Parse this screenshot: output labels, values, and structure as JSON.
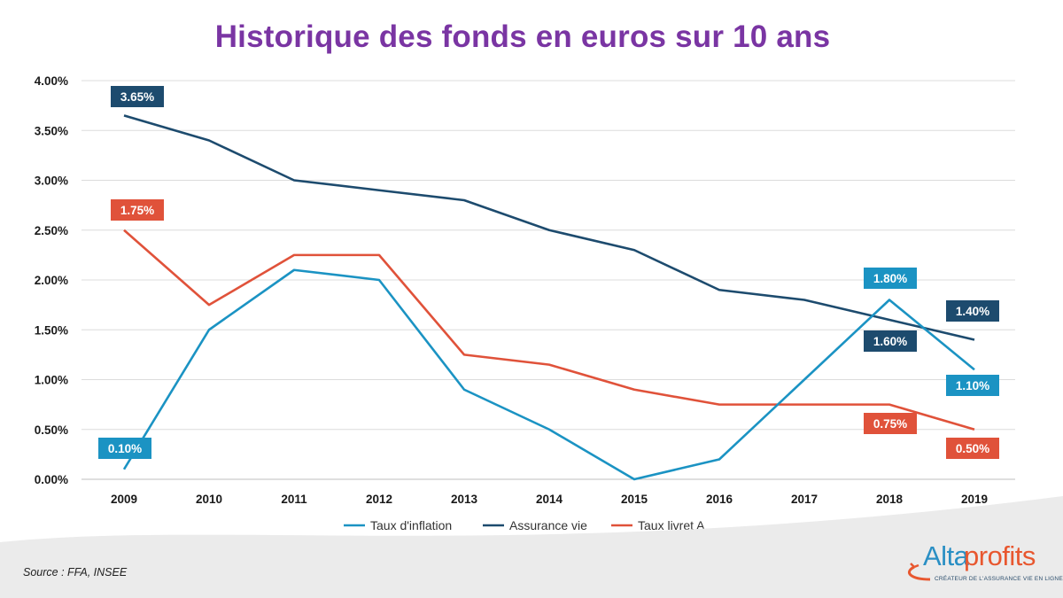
{
  "chart_data": {
    "type": "line",
    "title": "Historique des fonds en euros sur 10 ans",
    "categories": [
      "2009",
      "2010",
      "2011",
      "2012",
      "2013",
      "2014",
      "2015",
      "2016",
      "2017",
      "2018",
      "2019"
    ],
    "ylim": [
      0,
      4.0
    ],
    "yticks": [
      0,
      0.5,
      1.0,
      1.5,
      2.0,
      2.5,
      3.0,
      3.5,
      4.0
    ],
    "ytick_labels": [
      "0.00%",
      "0.50%",
      "1.00%",
      "1.50%",
      "2.00%",
      "2.50%",
      "3.00%",
      "3.50%",
      "4.00%"
    ],
    "grid": true,
    "legend_position": "bottom",
    "series": [
      {
        "name": "Taux d'inflation",
        "color": "#1b93c3",
        "values": [
          0.1,
          1.5,
          2.1,
          2.0,
          0.9,
          0.5,
          0.0,
          0.2,
          1.0,
          1.8,
          1.1
        ]
      },
      {
        "name": "Assurance vie",
        "color": "#1d4b6e",
        "values": [
          3.65,
          3.4,
          3.0,
          2.9,
          2.8,
          2.5,
          2.3,
          1.9,
          1.8,
          1.6,
          1.4
        ]
      },
      {
        "name": "Taux livret A",
        "color": "#e0523a",
        "values": [
          2.5,
          1.75,
          2.25,
          2.25,
          1.25,
          1.15,
          0.9,
          0.75,
          0.75,
          0.75,
          0.5
        ]
      }
    ],
    "data_labels": [
      {
        "text": "3.65%",
        "series": 1
      },
      {
        "text": "1.75%",
        "series": 2
      },
      {
        "text": "0.10%",
        "series": 0
      },
      {
        "text": "1.80%",
        "series": 0
      },
      {
        "text": "1.40%",
        "series": 1
      },
      {
        "text": "1.60%",
        "series": 1
      },
      {
        "text": "1.10%",
        "series": 0
      },
      {
        "text": "0.75%",
        "series": 2
      },
      {
        "text": "0.50%",
        "series": 2
      }
    ]
  },
  "footer": {
    "source": "Source : FFA, INSEE",
    "logo_part1": "Alta",
    "logo_part2": "profits",
    "logo_tagline": "CRÉATEUR DE L'ASSURANCE VIE EN LIGNE"
  }
}
